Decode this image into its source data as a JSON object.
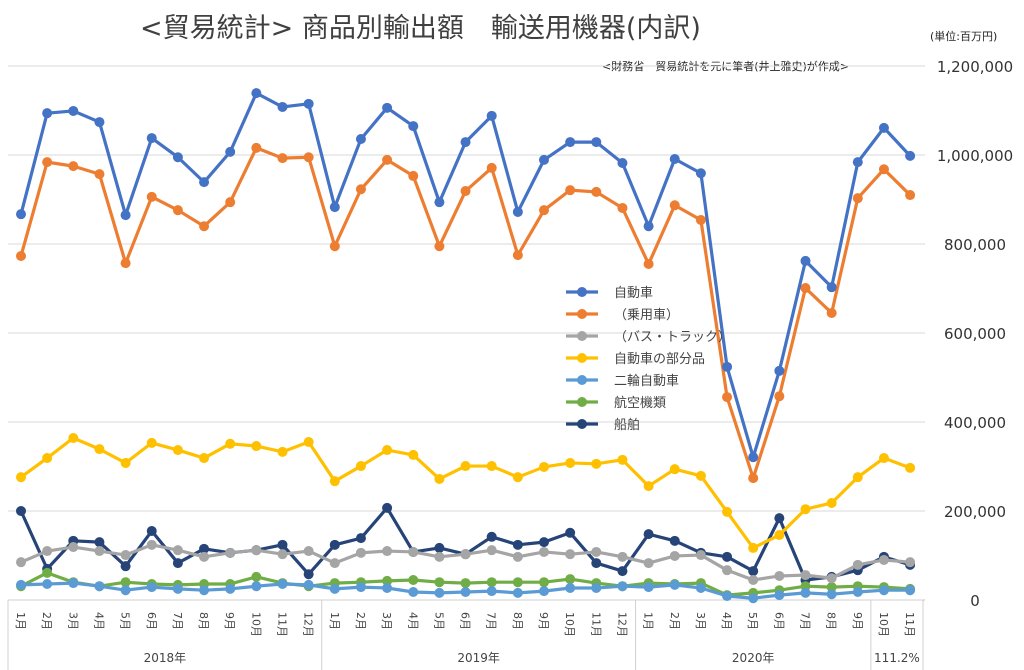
{
  "title": "<貿易統計> 商品別輸出額　輸送用機器(内訳)",
  "unit": "(単位:百万円)",
  "source": "<財務省　貿易統計を元に筆者(井上雅史)が作成>",
  "chart_data": {
    "type": "line",
    "title": "<貿易統計> 商品別輸出額　輸送用機器(内訳)",
    "ylabel": "(単位:百万円)",
    "ylim": [
      0,
      1200000
    ],
    "yticks": [
      0,
      200000,
      400000,
      600000,
      800000,
      1000000,
      1200000
    ],
    "ytick_labels": [
      "0",
      "200,000",
      "400,000",
      "600,000",
      "800,000",
      "1,000,000",
      "1,200,000"
    ],
    "grid": true,
    "legend_position": "center-right",
    "categories": [
      "1月",
      "2月",
      "3月",
      "4月",
      "5月",
      "6月",
      "7月",
      "8月",
      "9月",
      "10月",
      "11月",
      "12月",
      "1月",
      "2月",
      "3月",
      "4月",
      "5月",
      "6月",
      "7月",
      "8月",
      "9月",
      "10月",
      "11月",
      "12月",
      "1月",
      "2月",
      "3月",
      "4月",
      "5月",
      "6月",
      "7月",
      "8月",
      "9月",
      "10月",
      "11月"
    ],
    "groups": [
      {
        "label": "2018年",
        "count": 12
      },
      {
        "label": "2019年",
        "count": 12
      },
      {
        "label": "2020年",
        "count": 9
      },
      {
        "label": "111.2%",
        "count": 2
      }
    ],
    "series": [
      {
        "name": "自動車",
        "color": "#4472C4",
        "values": [
          867000,
          1094000,
          1099000,
          1074000,
          865000,
          1038000,
          995000,
          939000,
          1007000,
          1139000,
          1108000,
          1115000,
          883000,
          1036000,
          1106000,
          1065000,
          894000,
          1029000,
          1088000,
          872000,
          989000,
          1029000,
          1029000,
          982000,
          840000,
          991000,
          959000,
          524000,
          321000,
          515000,
          762000,
          703000,
          984000,
          1061000,
          998000
        ]
      },
      {
        "name": "（乗用車）",
        "color": "#ED7D31",
        "values": [
          773000,
          984000,
          975000,
          957000,
          757000,
          906000,
          876000,
          840000,
          894000,
          1016000,
          993000,
          995000,
          795000,
          923000,
          989000,
          953000,
          795000,
          919000,
          971000,
          775000,
          876000,
          921000,
          917000,
          881000,
          755000,
          887000,
          854000,
          456000,
          274000,
          458000,
          701000,
          645000,
          903000,
          968000,
          910000
        ]
      },
      {
        "name": "（バス・トラック）",
        "color": "#A5A5A5",
        "values": [
          85000,
          110000,
          119000,
          110000,
          101000,
          124000,
          112000,
          97000,
          106000,
          112000,
          103000,
          110000,
          83000,
          106000,
          110000,
          108000,
          97000,
          103000,
          112000,
          97000,
          108000,
          103000,
          108000,
          97000,
          83000,
          99000,
          101000,
          67000,
          45000,
          54000,
          56000,
          49000,
          79000,
          90000,
          85000
        ]
      },
      {
        "name": "自動車の部分品",
        "color": "#FFC000",
        "values": [
          276000,
          319000,
          364000,
          339000,
          308000,
          353000,
          337000,
          319000,
          351000,
          346000,
          333000,
          355000,
          267000,
          301000,
          337000,
          326000,
          272000,
          301000,
          301000,
          276000,
          299000,
          308000,
          306000,
          315000,
          256000,
          294000,
          279000,
          198000,
          117000,
          146000,
          204000,
          218000,
          276000,
          319000,
          297000
        ]
      },
      {
        "name": "二輪自動車",
        "color": "#5B9BD5",
        "values": [
          34000,
          36000,
          38000,
          31000,
          22000,
          29000,
          25000,
          22000,
          25000,
          31000,
          36000,
          34000,
          25000,
          29000,
          27000,
          18000,
          16000,
          18000,
          20000,
          16000,
          20000,
          27000,
          27000,
          31000,
          29000,
          34000,
          27000,
          9000,
          4000,
          11000,
          16000,
          13000,
          18000,
          22000,
          22000
        ]
      },
      {
        "name": "航空機類",
        "color": "#70AD47",
        "values": [
          31000,
          61000,
          40000,
          31000,
          40000,
          36000,
          34000,
          36000,
          36000,
          52000,
          38000,
          31000,
          38000,
          40000,
          43000,
          45000,
          40000,
          38000,
          40000,
          40000,
          40000,
          47000,
          38000,
          31000,
          38000,
          36000,
          38000,
          11000,
          16000,
          22000,
          31000,
          29000,
          31000,
          29000,
          25000
        ]
      },
      {
        "name": "船舶",
        "color": "#264478",
        "values": [
          200000,
          70000,
          133000,
          130000,
          76000,
          155000,
          83000,
          115000,
          106000,
          112000,
          124000,
          58000,
          124000,
          139000,
          207000,
          108000,
          117000,
          103000,
          142000,
          124000,
          130000,
          151000,
          83000,
          65000,
          148000,
          133000,
          106000,
          97000,
          65000,
          184000,
          45000,
          52000,
          67000,
          97000,
          79000
        ]
      }
    ]
  }
}
